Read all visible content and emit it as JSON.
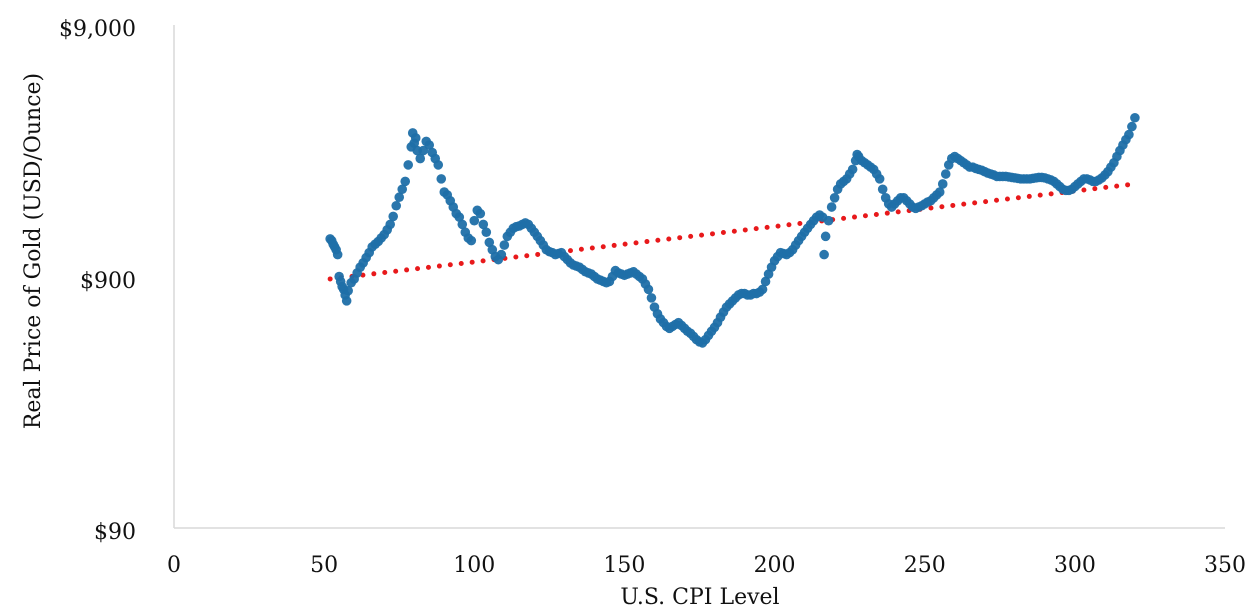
{
  "chart_data": {
    "type": "scatter",
    "title": "",
    "xlabel": "U.S. CPI Level",
    "ylabel": "Real Price of Gold (USD/Ounce)",
    "xlim": [
      0,
      350
    ],
    "ylim": [
      90,
      9000
    ],
    "y_scale": "log",
    "x_ticks": [
      0,
      50,
      100,
      150,
      200,
      250,
      300,
      350
    ],
    "x_tick_labels": [
      "0",
      "50",
      "100",
      "150",
      "200",
      "250",
      "300",
      "350"
    ],
    "y_ticks": [
      90,
      900,
      9000
    ],
    "y_tick_labels": [
      "$90",
      "$900",
      "$9,000"
    ],
    "grid": false,
    "legend": "none",
    "colors": {
      "points": "#1f6fa8",
      "trendline": "#e8191b",
      "axis": "#d9d9d9",
      "text": "#111111"
    },
    "series": [
      {
        "type": "scatter",
        "points": [
          [
            52,
            1270
          ],
          [
            52.5,
            1250
          ],
          [
            53,
            1210
          ],
          [
            53.5,
            1180
          ],
          [
            54,
            1150
          ],
          [
            54.5,
            1100
          ],
          [
            55,
            900
          ],
          [
            55.5,
            860
          ],
          [
            56,
            820
          ],
          [
            56.5,
            800
          ],
          [
            57,
            760
          ],
          [
            57.5,
            720
          ],
          [
            58,
            790
          ],
          [
            59,
            850
          ],
          [
            60,
            880
          ],
          [
            61,
            930
          ],
          [
            62,
            980
          ],
          [
            63,
            1020
          ],
          [
            64,
            1070
          ],
          [
            65,
            1120
          ],
          [
            66,
            1180
          ],
          [
            67,
            1210
          ],
          [
            68,
            1240
          ],
          [
            69,
            1280
          ],
          [
            70,
            1320
          ],
          [
            71,
            1380
          ],
          [
            72,
            1450
          ],
          [
            73,
            1560
          ],
          [
            74,
            1720
          ],
          [
            75,
            1860
          ],
          [
            76,
            2000
          ],
          [
            77,
            2150
          ],
          [
            78,
            2500
          ],
          [
            79,
            2950
          ],
          [
            79.5,
            3350
          ],
          [
            80,
            3050
          ],
          [
            80.5,
            3200
          ],
          [
            81,
            2850
          ],
          [
            82,
            2650
          ],
          [
            83,
            2850
          ],
          [
            84,
            3100
          ],
          [
            85,
            3000
          ],
          [
            86,
            2800
          ],
          [
            87,
            2650
          ],
          [
            88,
            2500
          ],
          [
            89,
            2200
          ],
          [
            90,
            1950
          ],
          [
            91,
            1900
          ],
          [
            92,
            1800
          ],
          [
            93,
            1700
          ],
          [
            94,
            1600
          ],
          [
            95,
            1550
          ],
          [
            96,
            1450
          ],
          [
            97,
            1350
          ],
          [
            98,
            1280
          ],
          [
            99,
            1250
          ],
          [
            100,
            1500
          ],
          [
            101,
            1650
          ],
          [
            102,
            1600
          ],
          [
            103,
            1450
          ],
          [
            104,
            1350
          ],
          [
            105,
            1230
          ],
          [
            106,
            1150
          ],
          [
            107,
            1080
          ],
          [
            108,
            1050
          ],
          [
            109,
            1100
          ],
          [
            110,
            1200
          ],
          [
            111,
            1300
          ],
          [
            112,
            1350
          ],
          [
            113,
            1400
          ],
          [
            114,
            1420
          ],
          [
            115,
            1430
          ],
          [
            116,
            1450
          ],
          [
            117,
            1470
          ],
          [
            118,
            1450
          ],
          [
            119,
            1400
          ],
          [
            120,
            1350
          ],
          [
            121,
            1300
          ],
          [
            122,
            1250
          ],
          [
            123,
            1200
          ],
          [
            124,
            1150
          ],
          [
            125,
            1130
          ],
          [
            126,
            1120
          ],
          [
            127,
            1100
          ],
          [
            128,
            1110
          ],
          [
            129,
            1120
          ],
          [
            130,
            1080
          ],
          [
            131,
            1050
          ],
          [
            132,
            1020
          ],
          [
            133,
            1000
          ],
          [
            134,
            990
          ],
          [
            135,
            980
          ],
          [
            136,
            960
          ],
          [
            137,
            940
          ],
          [
            138,
            930
          ],
          [
            139,
            920
          ],
          [
            140,
            900
          ],
          [
            141,
            880
          ],
          [
            142,
            870
          ],
          [
            143,
            860
          ],
          [
            144,
            850
          ],
          [
            145,
            860
          ],
          [
            146,
            900
          ],
          [
            147,
            950
          ],
          [
            148,
            930
          ],
          [
            149,
            920
          ],
          [
            150,
            910
          ],
          [
            151,
            920
          ],
          [
            152,
            930
          ],
          [
            153,
            940
          ],
          [
            154,
            920
          ],
          [
            155,
            900
          ],
          [
            156,
            880
          ],
          [
            157,
            840
          ],
          [
            158,
            800
          ],
          [
            159,
            740
          ],
          [
            160,
            680
          ],
          [
            161,
            640
          ],
          [
            162,
            610
          ],
          [
            163,
            590
          ],
          [
            164,
            570
          ],
          [
            165,
            560
          ],
          [
            166,
            570
          ],
          [
            167,
            580
          ],
          [
            168,
            590
          ],
          [
            169,
            575
          ],
          [
            170,
            560
          ],
          [
            171,
            545
          ],
          [
            172,
            535
          ],
          [
            173,
            520
          ],
          [
            174,
            505
          ],
          [
            175,
            495
          ],
          [
            176,
            490
          ],
          [
            177,
            505
          ],
          [
            178,
            525
          ],
          [
            179,
            545
          ],
          [
            180,
            565
          ],
          [
            181,
            590
          ],
          [
            182,
            620
          ],
          [
            183,
            650
          ],
          [
            184,
            680
          ],
          [
            185,
            700
          ],
          [
            186,
            720
          ],
          [
            187,
            740
          ],
          [
            188,
            760
          ],
          [
            189,
            770
          ],
          [
            190,
            770
          ],
          [
            191,
            760
          ],
          [
            192,
            760
          ],
          [
            193,
            770
          ],
          [
            194,
            770
          ],
          [
            195,
            780
          ],
          [
            196,
            800
          ],
          [
            197,
            860
          ],
          [
            198,
            920
          ],
          [
            199,
            980
          ],
          [
            200,
            1040
          ],
          [
            201,
            1080
          ],
          [
            202,
            1120
          ],
          [
            203,
            1110
          ],
          [
            204,
            1100
          ],
          [
            205,
            1120
          ],
          [
            206,
            1150
          ],
          [
            207,
            1200
          ],
          [
            208,
            1250
          ],
          [
            209,
            1300
          ],
          [
            210,
            1350
          ],
          [
            211,
            1400
          ],
          [
            212,
            1450
          ],
          [
            213,
            1500
          ],
          [
            214,
            1550
          ],
          [
            215,
            1580
          ],
          [
            216,
            1550
          ],
          [
            216.5,
            1100
          ],
          [
            217,
            1300
          ],
          [
            218,
            1500
          ],
          [
            219,
            1700
          ],
          [
            220,
            1850
          ],
          [
            221,
            2000
          ],
          [
            222,
            2100
          ],
          [
            223,
            2150
          ],
          [
            224,
            2200
          ],
          [
            225,
            2300
          ],
          [
            226,
            2400
          ],
          [
            227,
            2600
          ],
          [
            227.5,
            2750
          ],
          [
            228,
            2700
          ],
          [
            229,
            2600
          ],
          [
            230,
            2550
          ],
          [
            231,
            2500
          ],
          [
            232,
            2450
          ],
          [
            233,
            2400
          ],
          [
            234,
            2300
          ],
          [
            235,
            2200
          ],
          [
            236,
            2000
          ],
          [
            237,
            1850
          ],
          [
            238,
            1750
          ],
          [
            239,
            1700
          ],
          [
            240,
            1750
          ],
          [
            241,
            1800
          ],
          [
            242,
            1850
          ],
          [
            243,
            1850
          ],
          [
            244,
            1800
          ],
          [
            245,
            1750
          ],
          [
            246,
            1700
          ],
          [
            247,
            1680
          ],
          [
            248,
            1700
          ],
          [
            249,
            1720
          ],
          [
            250,
            1750
          ],
          [
            251,
            1780
          ],
          [
            252,
            1800
          ],
          [
            253,
            1850
          ],
          [
            254,
            1900
          ],
          [
            255,
            1950
          ],
          [
            256,
            2100
          ],
          [
            257,
            2300
          ],
          [
            258,
            2500
          ],
          [
            259,
            2650
          ],
          [
            260,
            2700
          ],
          [
            261,
            2650
          ],
          [
            262,
            2600
          ],
          [
            263,
            2550
          ],
          [
            264,
            2500
          ],
          [
            265,
            2450
          ],
          [
            266,
            2450
          ],
          [
            267,
            2420
          ],
          [
            268,
            2400
          ],
          [
            269,
            2380
          ],
          [
            270,
            2350
          ],
          [
            271,
            2320
          ],
          [
            272,
            2300
          ],
          [
            273,
            2280
          ],
          [
            274,
            2250
          ],
          [
            275,
            2250
          ],
          [
            276,
            2250
          ],
          [
            277,
            2250
          ],
          [
            278,
            2240
          ],
          [
            279,
            2230
          ],
          [
            280,
            2220
          ],
          [
            281,
            2210
          ],
          [
            282,
            2200
          ],
          [
            283,
            2200
          ],
          [
            284,
            2200
          ],
          [
            285,
            2200
          ],
          [
            286,
            2210
          ],
          [
            287,
            2220
          ],
          [
            288,
            2230
          ],
          [
            289,
            2230
          ],
          [
            290,
            2220
          ],
          [
            291,
            2200
          ],
          [
            292,
            2180
          ],
          [
            293,
            2150
          ],
          [
            294,
            2100
          ],
          [
            295,
            2050
          ],
          [
            296,
            2000
          ],
          [
            297,
            1980
          ],
          [
            298,
            1980
          ],
          [
            299,
            2000
          ],
          [
            300,
            2050
          ],
          [
            301,
            2100
          ],
          [
            302,
            2150
          ],
          [
            303,
            2200
          ],
          [
            304,
            2200
          ],
          [
            305,
            2180
          ],
          [
            306,
            2150
          ],
          [
            307,
            2150
          ],
          [
            308,
            2180
          ],
          [
            309,
            2220
          ],
          [
            310,
            2280
          ],
          [
            311,
            2350
          ],
          [
            312,
            2450
          ],
          [
            313,
            2550
          ],
          [
            314,
            2700
          ],
          [
            315,
            2850
          ],
          [
            316,
            3000
          ],
          [
            317,
            3150
          ],
          [
            318,
            3300
          ],
          [
            319,
            3550
          ],
          [
            320,
            3850
          ]
        ]
      },
      {
        "type": "trendline",
        "style": "dotted",
        "points": [
          [
            52,
            880
          ],
          [
            320,
            2100
          ]
        ]
      }
    ]
  }
}
